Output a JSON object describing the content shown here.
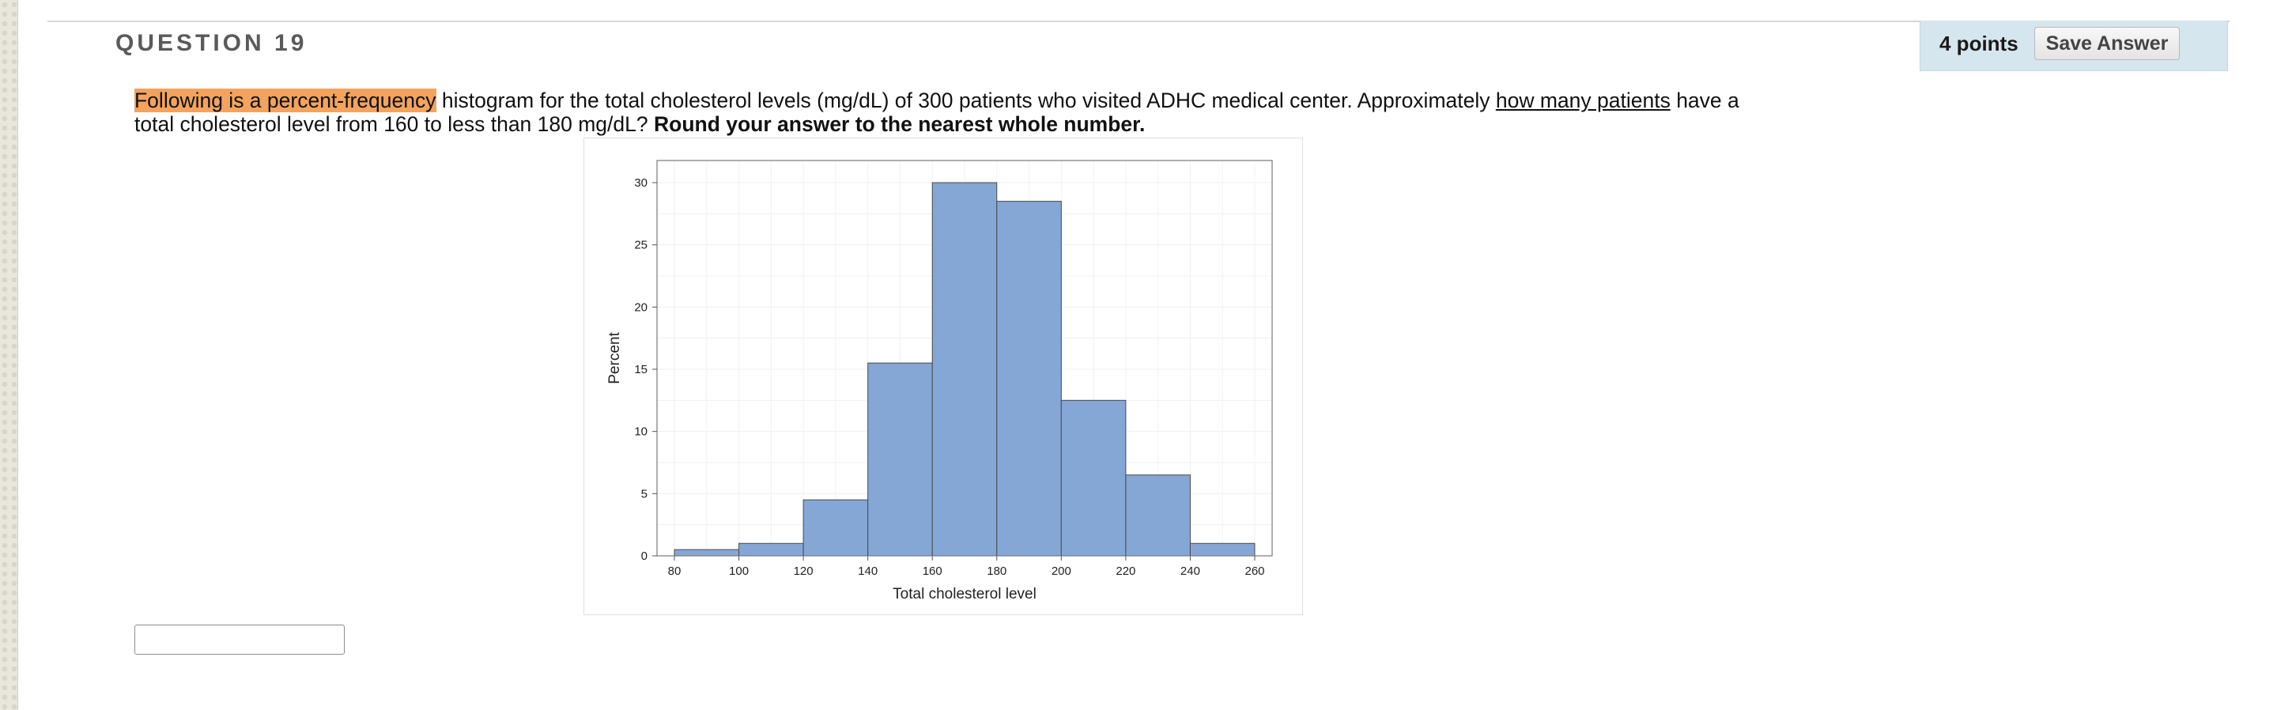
{
  "question": {
    "title": "QUESTION 19",
    "points": "4 points",
    "save_label": "Save Answer",
    "text_parts": {
      "highlight": "Following is a percent-frequency",
      "p1": " histogram for the total cholesterol levels (mg/dL) of 300 patients who visited ADHC medical center. Approximately ",
      "underline": "how many patients",
      "p2": " have a total cholesterol level from 160 to less than 180 mg/dL? ",
      "bold": "Round your answer to the nearest whole number."
    },
    "answer_value": ""
  },
  "chart_data": {
    "type": "bar",
    "bin_edges": [
      80,
      100,
      120,
      140,
      160,
      180,
      200,
      220,
      240,
      260
    ],
    "values": [
      0.5,
      1,
      4.5,
      15.5,
      30,
      28.5,
      12.5,
      6.5,
      1
    ],
    "x_ticks": [
      "80",
      "100",
      "120",
      "140",
      "160",
      "180",
      "200",
      "220",
      "240",
      "260"
    ],
    "y_ticks": [
      "0",
      "5",
      "10",
      "15",
      "20",
      "25",
      "30"
    ],
    "xlabel": "Total cholesterol level",
    "ylabel": "Percent",
    "xlim": [
      80,
      260
    ],
    "ylim": [
      0,
      30
    ],
    "grid": true,
    "bar_color": "#84a7d6",
    "bar_edge_color": "#4a4a4a"
  }
}
